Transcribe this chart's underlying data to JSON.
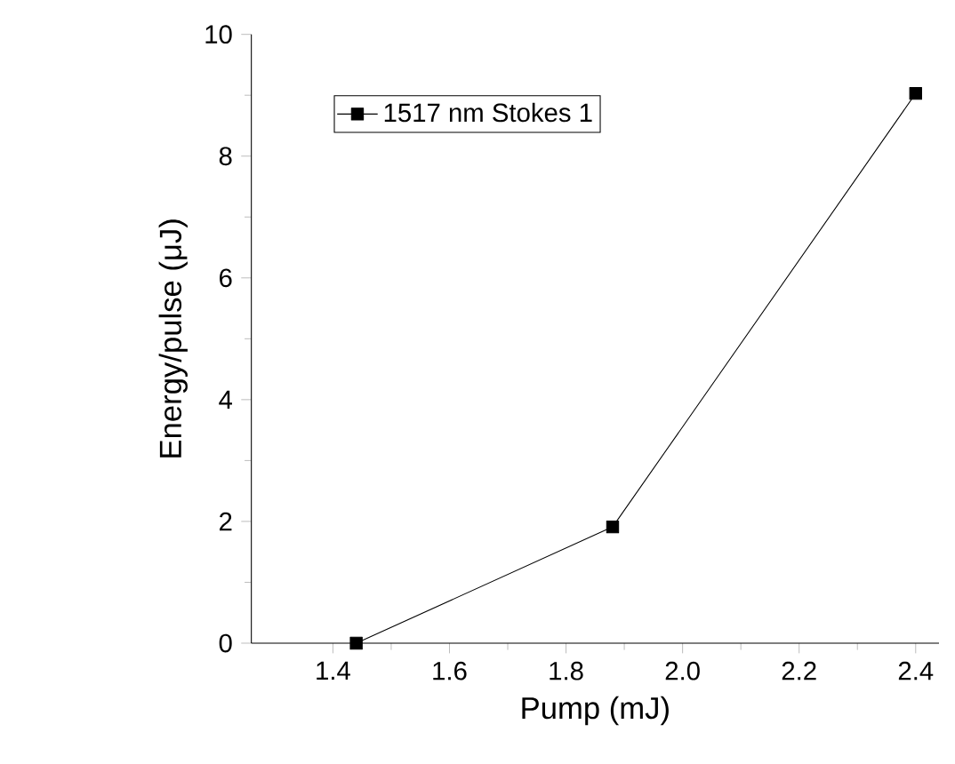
{
  "chart_data": {
    "type": "line",
    "xlabel": "Pump (mJ)",
    "ylabel": "Energy/pulse (μJ)",
    "series": [
      {
        "name": "1517 nm Stokes 1",
        "color": "#000000",
        "x": [
          1.44,
          1.88,
          2.4
        ],
        "values": [
          0,
          1.91,
          9.03
        ]
      }
    ],
    "xlim": [
      1.26,
      2.44
    ],
    "ylim": [
      0,
      10
    ],
    "xticks": [
      {
        "value": 1.4,
        "label": "1.4"
      },
      {
        "value": 1.6,
        "label": "1.6"
      },
      {
        "value": 1.8,
        "label": "1.8"
      },
      {
        "value": 2.0,
        "label": "2.0"
      },
      {
        "value": 2.2,
        "label": "2.2"
      },
      {
        "value": 2.4,
        "label": "2.4"
      }
    ],
    "yticks": [
      0,
      2,
      4,
      6,
      8,
      10
    ],
    "marker": "square",
    "line_style": "solid",
    "legend": "top left",
    "grid": false
  }
}
